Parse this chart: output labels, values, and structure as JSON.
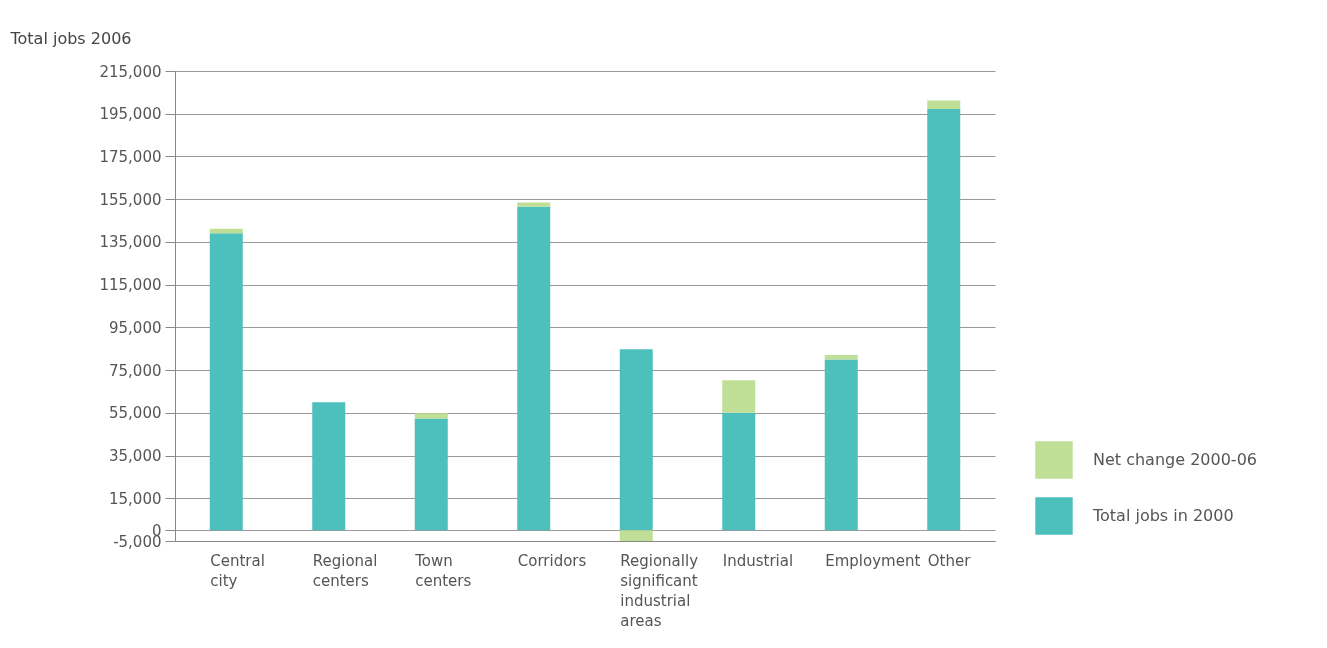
{
  "chart_data": {
    "type": "bar",
    "stacked": true,
    "ylabel": "Total jobs 2006",
    "categories": [
      "Central city",
      "Regional centers",
      "Town centers",
      "Corridors",
      "Regionally significant industrial areas",
      "Industrial",
      "Employment",
      "Other"
    ],
    "series": [
      {
        "name": "Total jobs in 2000",
        "color": "#4dbfbc",
        "values": [
          139000,
          60000,
          52300,
          151500,
          84800,
          55000,
          79900,
          197200
        ]
      },
      {
        "name": "Net change 2000-06",
        "color": "#bfdf96",
        "values": [
          2200,
          0,
          2500,
          2000,
          -5000,
          15300,
          2200,
          4000
        ]
      }
    ],
    "ylim": [
      -5000,
      215000
    ],
    "yticks": [
      {
        "value": -5000,
        "label": "-5,000"
      },
      0,
      {
        "value": 15000,
        "label": "15,000"
      },
      {
        "value": 35000,
        "label": "35,000"
      },
      {
        "value": 55000,
        "label": "55,000"
      },
      {
        "value": 75000,
        "label": "75,000"
      },
      {
        "value": 95000,
        "label": "95,000"
      },
      {
        "value": 115000,
        "label": "115,000"
      },
      {
        "value": 135000,
        "label": "135,000"
      },
      {
        "value": 155000,
        "label": "155,000"
      },
      {
        "value": 175000,
        "label": "175,000"
      },
      {
        "value": 195000,
        "label": "195,000"
      },
      {
        "value": 215000,
        "label": "215,000"
      }
    ],
    "grid": "y",
    "legend": "right"
  }
}
